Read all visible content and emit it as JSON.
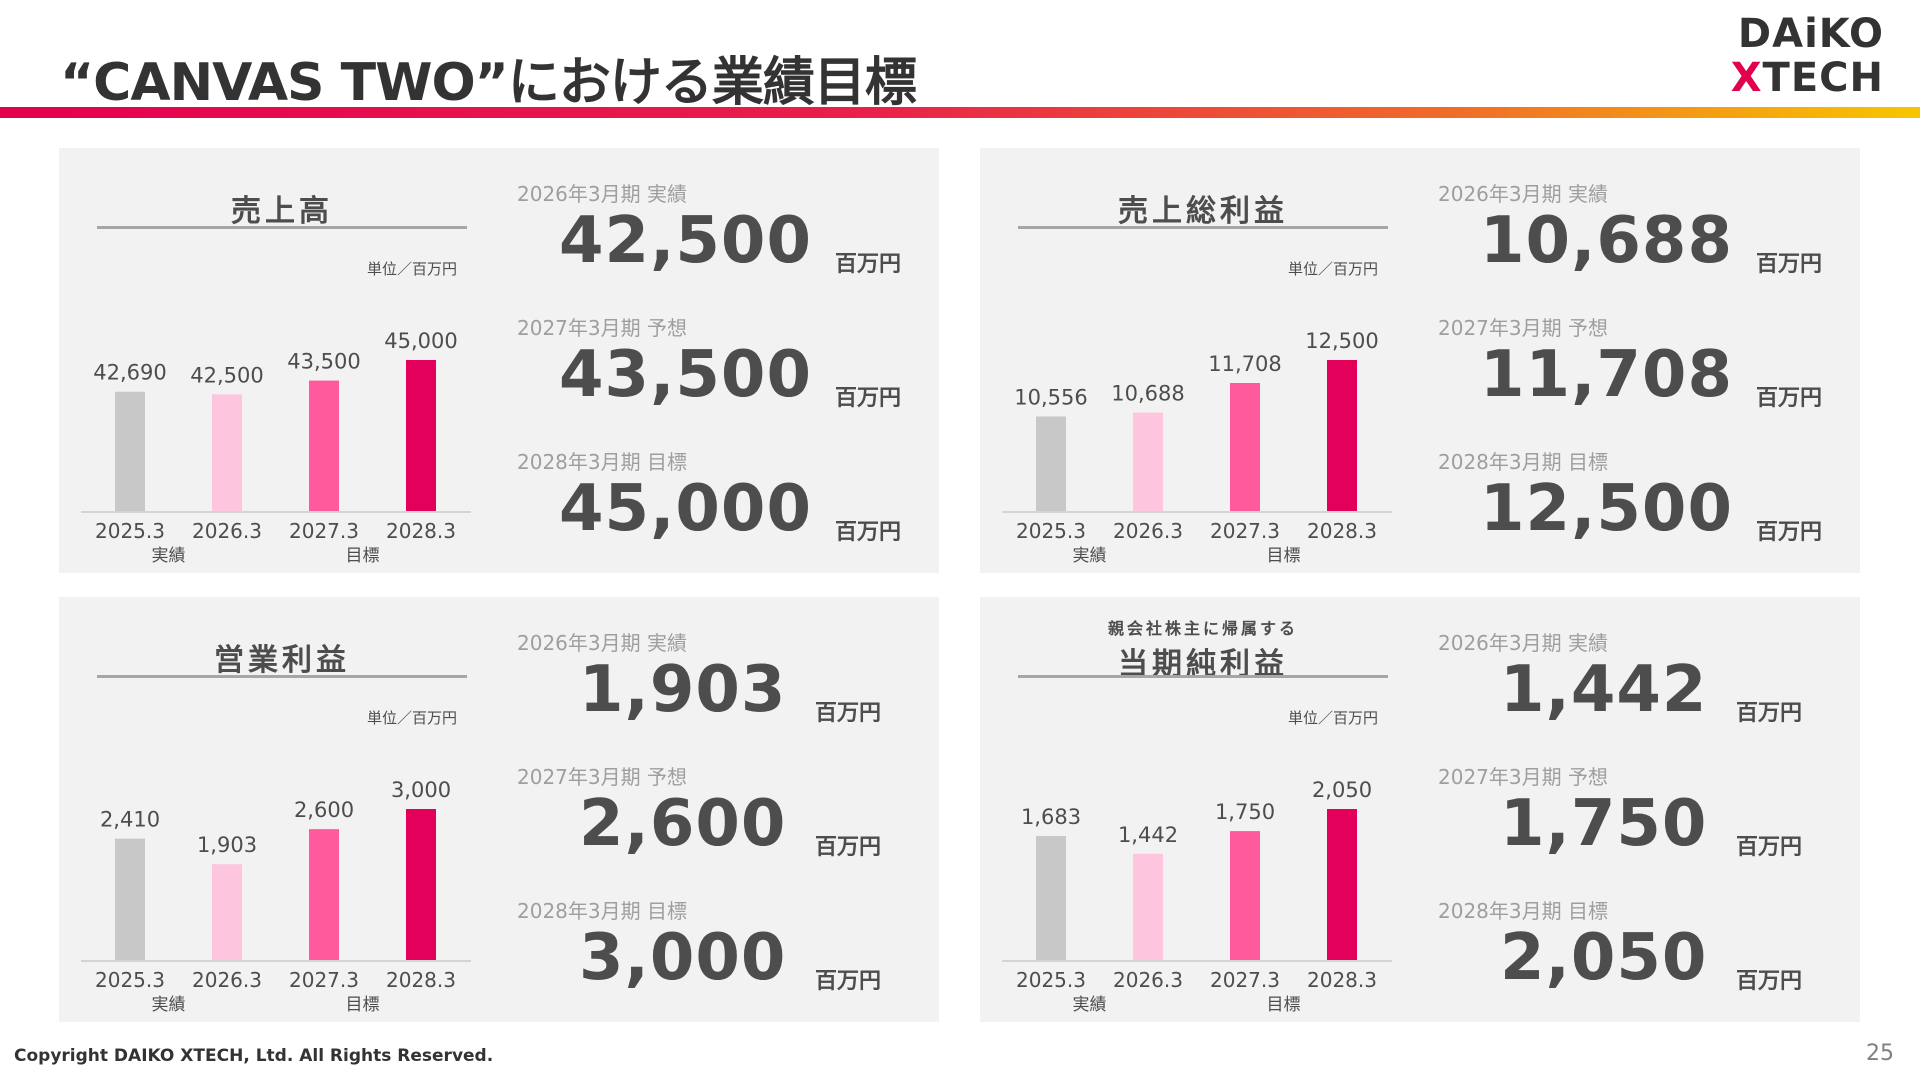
{
  "header": {
    "title": "“CANVAS TWO”における業績目標",
    "logo_line1": "DAiKO",
    "logo_x": "X",
    "logo_line2": "TECH"
  },
  "footer": {
    "copyright": "Copyright DAIKO XTECH, Ltd. All Rights Reserved.",
    "page_number": "25"
  },
  "colors": {
    "gradient_start": "#e3004f",
    "gradient_end": "#f7c600",
    "bar_2025": "#c8c8c8",
    "bar_2026": "#fdc5de",
    "bar_2027": "#ff5a9b",
    "bar_2028": "#e3005a"
  },
  "panels": [
    {
      "title_pre": "",
      "title": "売上高",
      "unit": "単位／百万円",
      "kpis": [
        {
          "label": "2026年3月期 実績",
          "value": "42,500",
          "unit": "百万円"
        },
        {
          "label": "2027年3月期 予想",
          "value": "43,500",
          "unit": "百万円"
        },
        {
          "label": "2028年3月期 目標",
          "value": "45,000",
          "unit": "百万円"
        }
      ]
    },
    {
      "title_pre": "",
      "title": "売上総利益",
      "unit": "単位／百万円",
      "kpis": [
        {
          "label": "2026年3月期 実績",
          "value": "10,688",
          "unit": "百万円"
        },
        {
          "label": "2027年3月期 予想",
          "value": "11,708",
          "unit": "百万円"
        },
        {
          "label": "2028年3月期 目標",
          "value": "12,500",
          "unit": "百万円"
        }
      ]
    },
    {
      "title_pre": "",
      "title": "営業利益",
      "unit": "単位／百万円",
      "kpis": [
        {
          "label": "2026年3月期 実績",
          "value": "1,903",
          "unit": "百万円"
        },
        {
          "label": "2027年3月期 予想",
          "value": "2,600",
          "unit": "百万円"
        },
        {
          "label": "2028年3月期 目標",
          "value": "3,000",
          "unit": "百万円"
        }
      ]
    },
    {
      "title_pre": "親会社株主に帰属する",
      "title": "当期純利益",
      "unit": "単位／百万円",
      "kpis": [
        {
          "label": "2026年3月期 実績",
          "value": "1,442",
          "unit": "百万円"
        },
        {
          "label": "2027年3月期 予想",
          "value": "1,750",
          "unit": "百万円"
        },
        {
          "label": "2028年3月期 目標",
          "value": "2,050",
          "unit": "百万円"
        }
      ]
    }
  ],
  "chart_data": [
    {
      "type": "bar",
      "title": "売上高",
      "categories": [
        "2025.3",
        "2026.3",
        "2027.3",
        "2028.3"
      ],
      "values": [
        42690,
        42500,
        43500,
        45000
      ],
      "value_labels": [
        "42,690",
        "42,500",
        "43,500",
        "45,000"
      ],
      "group_labels": [
        "実績",
        "目標"
      ],
      "ylim": [
        34000,
        45000
      ],
      "grid": false
    },
    {
      "type": "bar",
      "title": "売上総利益",
      "categories": [
        "2025.3",
        "2026.3",
        "2027.3",
        "2028.3"
      ],
      "values": [
        10556,
        10688,
        11708,
        12500
      ],
      "value_labels": [
        "10,556",
        "10,688",
        "11,708",
        "12,500"
      ],
      "group_labels": [
        "実績",
        "目標"
      ],
      "ylim": [
        7300,
        12500
      ],
      "grid": false
    },
    {
      "type": "bar",
      "title": "営業利益",
      "categories": [
        "2025.3",
        "2026.3",
        "2027.3",
        "2028.3"
      ],
      "values": [
        2410,
        1903,
        2600,
        3000
      ],
      "value_labels": [
        "2,410",
        "1,903",
        "2,600",
        "3,000"
      ],
      "group_labels": [
        "実績",
        "目標"
      ],
      "ylim": [
        0,
        3000
      ],
      "grid": false
    },
    {
      "type": "bar",
      "title": "親会社株主に帰属する当期純利益",
      "categories": [
        "2025.3",
        "2026.3",
        "2027.3",
        "2028.3"
      ],
      "values": [
        1683,
        1442,
        1750,
        2050
      ],
      "value_labels": [
        "1,683",
        "1,442",
        "1,750",
        "2,050"
      ],
      "group_labels": [
        "実績",
        "目標"
      ],
      "ylim": [
        0,
        2050
      ],
      "grid": false
    }
  ]
}
